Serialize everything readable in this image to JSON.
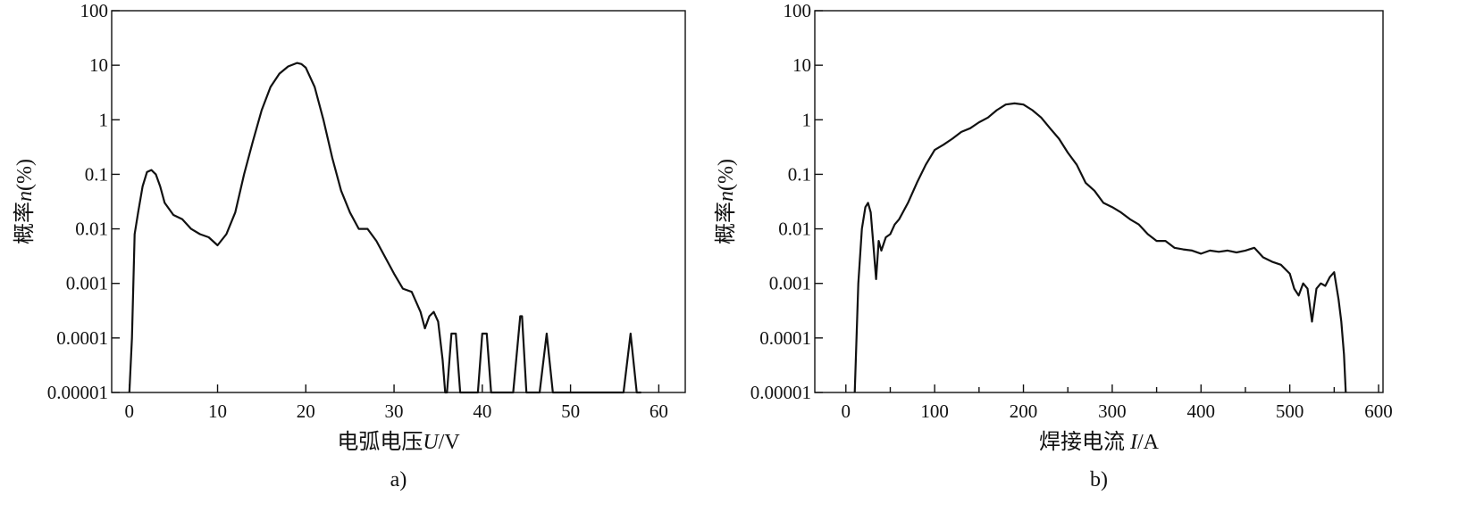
{
  "chart_data": [
    {
      "type": "line",
      "panel_label": "a)",
      "xlabel": "电弧电压U/V",
      "xlabel_parts": {
        "main": "电弧电压",
        "var": "U",
        "unit": "/V"
      },
      "ylabel": "概率n(%)",
      "ylabel_parts": {
        "main": "概率",
        "var": "n",
        "unit": "(%)"
      },
      "xlim": [
        -2,
        63
      ],
      "ylim": [
        1e-05,
        100
      ],
      "yscale": "log",
      "xticks": [
        0,
        10,
        20,
        30,
        40,
        50,
        60
      ],
      "xtick_labels": [
        "0",
        "10",
        "20",
        "30",
        "40",
        "50",
        "60"
      ],
      "yticks": [
        1e-05,
        0.0001,
        0.001,
        0.01,
        0.1,
        1,
        10,
        100
      ],
      "ytick_labels": [
        "0.00001",
        "0.0001",
        "0.001",
        "0.01",
        "0.1",
        "1",
        "10",
        "100"
      ],
      "grid": false,
      "series": [
        {
          "x": [
            0,
            0.3,
            0.6,
            1,
            1.5,
            2,
            2.5,
            3,
            3.5,
            4,
            5,
            6,
            7,
            8,
            9,
            10,
            11,
            12,
            13,
            14,
            15,
            16,
            17,
            18,
            19,
            19.5,
            20,
            21,
            22,
            23,
            24,
            25,
            26,
            27,
            28,
            29,
            30,
            31,
            32,
            33,
            33.5,
            34,
            34.5,
            35,
            35.5,
            35.8,
            36,
            36.5,
            37,
            37.5,
            38,
            39.5,
            40,
            40.5,
            41,
            43.5,
            44.3,
            44.5,
            45,
            46.5,
            47.3,
            48,
            56,
            56.8,
            57.5,
            58
          ],
          "y": [
            1e-05,
            0.0001,
            0.008,
            0.02,
            0.06,
            0.11,
            0.12,
            0.1,
            0.06,
            0.03,
            0.018,
            0.015,
            0.01,
            0.008,
            0.007,
            0.005,
            0.008,
            0.02,
            0.1,
            0.4,
            1.5,
            4,
            7,
            9.5,
            11,
            10.5,
            9,
            4,
            1,
            0.2,
            0.05,
            0.02,
            0.01,
            0.01,
            0.006,
            0.003,
            0.0015,
            0.0008,
            0.0007,
            0.0003,
            0.00015,
            0.00025,
            0.0003,
            0.0002,
            4e-05,
            1e-05,
            1e-05,
            0.00012,
            0.00012,
            1e-05,
            1e-05,
            1e-05,
            0.00012,
            0.00012,
            1e-05,
            1e-05,
            0.00025,
            0.00025,
            1e-05,
            1e-05,
            0.00012,
            1e-05,
            1e-05,
            0.00012,
            1e-05,
            1e-05
          ]
        }
      ]
    },
    {
      "type": "line",
      "panel_label": "b)",
      "xlabel": "焊接电流 I/A",
      "xlabel_parts": {
        "main": "焊接电流 ",
        "var": "I",
        "unit": "/A"
      },
      "ylabel": "概率n(%)",
      "ylabel_parts": {
        "main": "概率",
        "var": "n",
        "unit": "(%)"
      },
      "xlim": [
        -35,
        605
      ],
      "ylim": [
        1e-05,
        100
      ],
      "yscale": "log",
      "xticks": [
        0,
        100,
        200,
        300,
        400,
        500,
        600
      ],
      "xtick_labels": [
        "0",
        "100",
        "200",
        "300",
        "400",
        "500",
        "600"
      ],
      "minor_xticks": [
        50,
        150,
        250,
        350,
        450,
        550
      ],
      "yticks": [
        1e-05,
        0.0001,
        0.001,
        0.01,
        0.1,
        1,
        10,
        100
      ],
      "ytick_labels": [
        "0.00001",
        "0.0001",
        "0.001",
        "0.01",
        "0.1",
        "1",
        "10",
        "100"
      ],
      "grid": false,
      "series": [
        {
          "x": [
            10,
            14,
            18,
            22,
            25,
            28,
            31,
            34,
            37,
            40,
            45,
            50,
            55,
            60,
            70,
            80,
            90,
            100,
            110,
            120,
            130,
            140,
            150,
            160,
            170,
            180,
            190,
            200,
            210,
            220,
            230,
            240,
            250,
            260,
            270,
            280,
            290,
            300,
            310,
            320,
            330,
            340,
            350,
            360,
            370,
            380,
            390,
            400,
            410,
            420,
            430,
            440,
            450,
            460,
            470,
            480,
            490,
            500,
            505,
            510,
            515,
            520,
            525,
            530,
            535,
            540,
            545,
            550,
            555,
            558,
            561,
            563
          ],
          "y": [
            1e-05,
            0.001,
            0.01,
            0.025,
            0.03,
            0.02,
            0.005,
            0.0012,
            0.006,
            0.004,
            0.007,
            0.008,
            0.012,
            0.015,
            0.03,
            0.07,
            0.15,
            0.28,
            0.35,
            0.45,
            0.6,
            0.7,
            0.9,
            1.1,
            1.5,
            1.9,
            2.0,
            1.9,
            1.5,
            1.1,
            0.7,
            0.45,
            0.25,
            0.15,
            0.07,
            0.05,
            0.03,
            0.025,
            0.02,
            0.015,
            0.012,
            0.008,
            0.006,
            0.006,
            0.0045,
            0.0042,
            0.004,
            0.0035,
            0.004,
            0.0038,
            0.004,
            0.0037,
            0.004,
            0.0045,
            0.003,
            0.0025,
            0.0022,
            0.0015,
            0.0008,
            0.0006,
            0.001,
            0.0008,
            0.0002,
            0.0008,
            0.001,
            0.0009,
            0.0013,
            0.0016,
            0.0005,
            0.0002,
            5e-05,
            1e-05
          ]
        }
      ]
    }
  ]
}
